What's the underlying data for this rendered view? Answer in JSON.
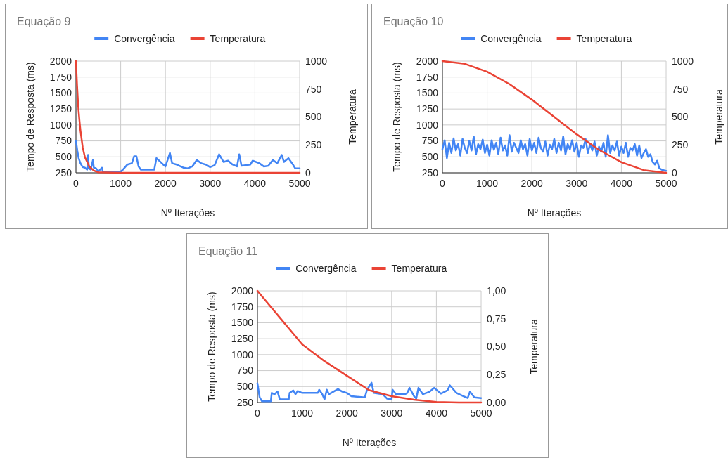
{
  "chart_data": [
    {
      "type": "line",
      "title": "Equação 9",
      "xlabel": "Nº Iterações",
      "ylabel": "Tempo de Resposta (ms)",
      "y2label": "Temperatura",
      "legend": "top",
      "grid": true,
      "xlim": [
        0,
        5000
      ],
      "xticks": [
        0,
        1000,
        2000,
        3000,
        4000,
        5000
      ],
      "ylim": [
        250,
        2000
      ],
      "yticks": [
        250,
        500,
        750,
        1000,
        1250,
        1500,
        1750,
        2000
      ],
      "y2lim": [
        0,
        1000
      ],
      "y2ticks": [
        0,
        250,
        500,
        750,
        1000
      ],
      "series": [
        {
          "name": "Convergência",
          "color": "#4285f4",
          "x": [
            0,
            30,
            60,
            100,
            150,
            200,
            250,
            270,
            290,
            330,
            380,
            400,
            450,
            500,
            580,
            600,
            1000,
            1050,
            1150,
            1250,
            1300,
            1350,
            1400,
            1450,
            1750,
            1800,
            1950,
            2000,
            2100,
            2150,
            2250,
            2400,
            2500,
            2600,
            2700,
            2800,
            2900,
            3000,
            3100,
            3200,
            3300,
            3400,
            3500,
            3600,
            3650,
            3700,
            3900,
            3950,
            4100,
            4200,
            4300,
            4400,
            4500,
            4600,
            4650,
            4750,
            4850,
            4900,
            5000
          ],
          "values": [
            750,
            600,
            480,
            400,
            340,
            330,
            300,
            530,
            320,
            300,
            450,
            330,
            320,
            270,
            330,
            270,
            270,
            300,
            380,
            400,
            510,
            510,
            350,
            300,
            300,
            480,
            380,
            350,
            560,
            400,
            380,
            330,
            320,
            350,
            450,
            400,
            380,
            340,
            370,
            540,
            420,
            440,
            380,
            350,
            540,
            360,
            380,
            440,
            400,
            350,
            360,
            450,
            400,
            530,
            420,
            480,
            380,
            320,
            320
          ]
        },
        {
          "name": "Temperatura",
          "color": "#ea4335",
          "axis": "y2",
          "x": [
            0,
            25,
            50,
            75,
            100,
            150,
            200,
            300,
            400,
            500,
            1000,
            5000
          ],
          "values": [
            1000,
            780,
            600,
            480,
            380,
            230,
            140,
            55,
            20,
            5,
            0,
            0
          ]
        }
      ]
    },
    {
      "type": "line",
      "title": "Equação 10",
      "xlabel": "Nº Iterações",
      "ylabel": "Tempo de Resposta (ms)",
      "y2label": "Temperatura",
      "legend": "top",
      "grid": true,
      "xlim": [
        0,
        5000
      ],
      "xticks": [
        0,
        1000,
        2000,
        3000,
        4000,
        5000
      ],
      "ylim": [
        250,
        2000
      ],
      "yticks": [
        250,
        500,
        750,
        1000,
        1250,
        1500,
        1750,
        2000
      ],
      "y2lim": [
        0,
        1000
      ],
      "y2ticks": [
        0,
        250,
        500,
        750,
        1000
      ],
      "series": [
        {
          "name": "Convergência",
          "color": "#4285f4",
          "x": [
            0,
            50,
            100,
            150,
            200,
            250,
            300,
            350,
            400,
            450,
            500,
            550,
            600,
            650,
            700,
            750,
            800,
            850,
            900,
            950,
            1000,
            1050,
            1100,
            1150,
            1200,
            1250,
            1300,
            1350,
            1400,
            1450,
            1500,
            1550,
            1600,
            1650,
            1700,
            1750,
            1800,
            1850,
            1900,
            1950,
            2000,
            2050,
            2100,
            2150,
            2200,
            2250,
            2300,
            2350,
            2400,
            2450,
            2500,
            2550,
            2600,
            2650,
            2700,
            2750,
            2800,
            2850,
            2900,
            2950,
            3000,
            3050,
            3100,
            3150,
            3200,
            3250,
            3300,
            3350,
            3400,
            3450,
            3500,
            3550,
            3600,
            3650,
            3700,
            3750,
            3800,
            3850,
            3900,
            3950,
            4000,
            4050,
            4100,
            4150,
            4200,
            4250,
            4300,
            4350,
            4400,
            4450,
            4500,
            4550,
            4600,
            4650,
            4700,
            4750,
            4800,
            4850,
            4900,
            4950,
            5000
          ],
          "values": [
            620,
            760,
            480,
            720,
            560,
            790,
            600,
            700,
            520,
            780,
            640,
            560,
            750,
            600,
            820,
            540,
            700,
            620,
            770,
            560,
            690,
            520,
            760,
            610,
            720,
            540,
            800,
            600,
            680,
            520,
            840,
            580,
            720,
            640,
            560,
            760,
            620,
            700,
            520,
            780,
            600,
            720,
            560,
            800,
            640,
            580,
            740,
            520,
            690,
            620,
            780,
            560,
            720,
            600,
            820,
            540,
            700,
            620,
            760,
            580,
            720,
            500,
            680,
            640,
            780,
            560,
            700,
            600,
            740,
            520,
            660,
            580,
            720,
            500,
            840,
            560,
            680,
            600,
            740,
            520,
            660,
            560,
            720,
            500,
            640,
            600,
            700,
            520,
            680,
            480,
            560,
            620,
            500,
            540,
            420,
            380,
            440,
            320,
            300,
            290,
            280
          ]
        },
        {
          "name": "Temperatura",
          "color": "#ea4335",
          "axis": "y2",
          "x": [
            0,
            500,
            1000,
            1500,
            2000,
            2500,
            3000,
            3500,
            4000,
            4500,
            5000
          ],
          "values": [
            1000,
            976,
            905,
            794,
            655,
            500,
            345,
            206,
            95,
            24,
            0
          ]
        }
      ]
    },
    {
      "type": "line",
      "title": "Equação 11",
      "xlabel": "Nº Iterações",
      "ylabel": "Tempo de Resposta (ms)",
      "y2label": "Temperatura",
      "legend": "top",
      "grid": true,
      "xlim": [
        0,
        5000
      ],
      "xticks": [
        0,
        1000,
        2000,
        3000,
        4000,
        5000
      ],
      "ylim": [
        250,
        2000
      ],
      "yticks": [
        250,
        500,
        750,
        1000,
        1250,
        1500,
        1750,
        2000
      ],
      "y2lim": [
        0,
        1
      ],
      "y2ticks": [
        {
          "value": 0,
          "label": "0,00"
        },
        {
          "value": 0.25,
          "label": "0,25"
        },
        {
          "value": 0.5,
          "label": "0,50"
        },
        {
          "value": 0.75,
          "label": "0,75"
        },
        {
          "value": 1,
          "label": "1,00"
        }
      ],
      "series": [
        {
          "name": "Convergência",
          "color": "#4285f4",
          "x": [
            0,
            50,
            100,
            300,
            320,
            380,
            450,
            500,
            700,
            720,
            800,
            850,
            900,
            1000,
            1350,
            1380,
            1450,
            1500,
            1550,
            1600,
            1800,
            1900,
            2000,
            2100,
            2400,
            2450,
            2550,
            2600,
            2800,
            2900,
            3000,
            3020,
            3100,
            3300,
            3350,
            3400,
            3500,
            3550,
            3600,
            3700,
            3850,
            3950,
            4100,
            4250,
            4300,
            4450,
            4600,
            4700,
            4750,
            4850,
            5000
          ],
          "values": [
            550,
            330,
            270,
            270,
            400,
            380,
            420,
            300,
            300,
            400,
            440,
            380,
            430,
            400,
            400,
            450,
            380,
            300,
            450,
            380,
            460,
            420,
            400,
            350,
            330,
            450,
            560,
            400,
            380,
            310,
            300,
            450,
            380,
            380,
            400,
            480,
            350,
            310,
            480,
            380,
            420,
            480,
            390,
            440,
            520,
            400,
            350,
            320,
            420,
            330,
            320
          ]
        },
        {
          "name": "Temperatura",
          "color": "#ea4335",
          "axis": "y2",
          "x": [
            0,
            500,
            1000,
            1500,
            2000,
            2500,
            3000,
            3500,
            4000,
            4500,
            5000
          ],
          "values": [
            1,
            0.76,
            0.52,
            0.37,
            0.24,
            0.11,
            0.057,
            0.025,
            0.005,
            0,
            0
          ]
        }
      ]
    }
  ]
}
